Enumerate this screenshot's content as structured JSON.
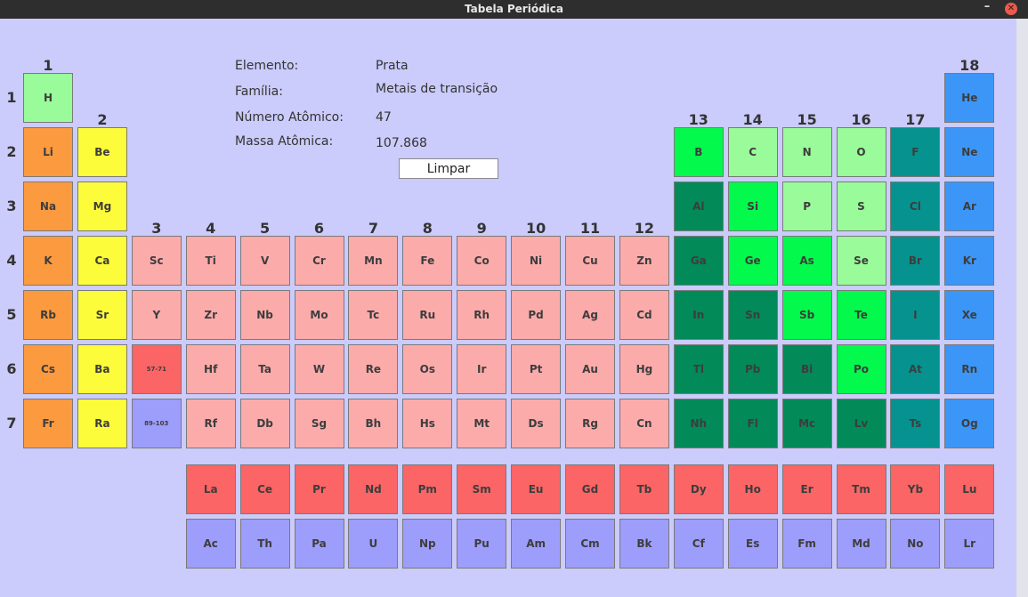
{
  "window": {
    "title": "Tabela Periódica"
  },
  "colors": {
    "hydrogen": "#99fb99",
    "alkali": "#fb9a3f",
    "alkaline_earth": "#fcfc3a",
    "transition": "#fcabab",
    "lanthanide": "#fb6565",
    "actinide": "#9d9dfb",
    "post_transition": "#028a59",
    "metalloid": "#03f94b",
    "nonmetal": "#99fb99",
    "halogen": "#06938f",
    "noble_gas": "#3c96f7"
  },
  "info": {
    "element_label": "Elemento:",
    "element_value": "Prata",
    "family_label": "Família:",
    "family_value": "Metais de transição",
    "atomic_number_label": "Número Atômico:",
    "atomic_number_value": "47",
    "atomic_mass_label": "Massa Atômica:",
    "atomic_mass_value": "107.868",
    "clear_button": "Limpar"
  },
  "group_labels": [
    "1",
    "2",
    "3",
    "4",
    "5",
    "6",
    "7",
    "8",
    "9",
    "10",
    "11",
    "12",
    "13",
    "14",
    "15",
    "16",
    "17",
    "18"
  ],
  "period_labels": [
    "1",
    "2",
    "3",
    "4",
    "5",
    "6",
    "7"
  ],
  "elements": [
    {
      "s": "H",
      "g": 1,
      "p": 1,
      "c": "hydrogen"
    },
    {
      "s": "He",
      "g": 18,
      "p": 1,
      "c": "noble_gas"
    },
    {
      "s": "Li",
      "g": 1,
      "p": 2,
      "c": "alkali"
    },
    {
      "s": "Be",
      "g": 2,
      "p": 2,
      "c": "alkaline_earth"
    },
    {
      "s": "B",
      "g": 13,
      "p": 2,
      "c": "metalloid"
    },
    {
      "s": "C",
      "g": 14,
      "p": 2,
      "c": "nonmetal"
    },
    {
      "s": "N",
      "g": 15,
      "p": 2,
      "c": "nonmetal"
    },
    {
      "s": "O",
      "g": 16,
      "p": 2,
      "c": "nonmetal"
    },
    {
      "s": "F",
      "g": 17,
      "p": 2,
      "c": "halogen"
    },
    {
      "s": "Ne",
      "g": 18,
      "p": 2,
      "c": "noble_gas"
    },
    {
      "s": "Na",
      "g": 1,
      "p": 3,
      "c": "alkali"
    },
    {
      "s": "Mg",
      "g": 2,
      "p": 3,
      "c": "alkaline_earth"
    },
    {
      "s": "Al",
      "g": 13,
      "p": 3,
      "c": "post_transition"
    },
    {
      "s": "Si",
      "g": 14,
      "p": 3,
      "c": "metalloid"
    },
    {
      "s": "P",
      "g": 15,
      "p": 3,
      "c": "nonmetal"
    },
    {
      "s": "S",
      "g": 16,
      "p": 3,
      "c": "nonmetal"
    },
    {
      "s": "Cl",
      "g": 17,
      "p": 3,
      "c": "halogen"
    },
    {
      "s": "Ar",
      "g": 18,
      "p": 3,
      "c": "noble_gas"
    },
    {
      "s": "K",
      "g": 1,
      "p": 4,
      "c": "alkali"
    },
    {
      "s": "Ca",
      "g": 2,
      "p": 4,
      "c": "alkaline_earth"
    },
    {
      "s": "Sc",
      "g": 3,
      "p": 4,
      "c": "transition"
    },
    {
      "s": "Ti",
      "g": 4,
      "p": 4,
      "c": "transition"
    },
    {
      "s": "V",
      "g": 5,
      "p": 4,
      "c": "transition"
    },
    {
      "s": "Cr",
      "g": 6,
      "p": 4,
      "c": "transition"
    },
    {
      "s": "Mn",
      "g": 7,
      "p": 4,
      "c": "transition"
    },
    {
      "s": "Fe",
      "g": 8,
      "p": 4,
      "c": "transition"
    },
    {
      "s": "Co",
      "g": 9,
      "p": 4,
      "c": "transition"
    },
    {
      "s": "Ni",
      "g": 10,
      "p": 4,
      "c": "transition"
    },
    {
      "s": "Cu",
      "g": 11,
      "p": 4,
      "c": "transition"
    },
    {
      "s": "Zn",
      "g": 12,
      "p": 4,
      "c": "transition"
    },
    {
      "s": "Ga",
      "g": 13,
      "p": 4,
      "c": "post_transition"
    },
    {
      "s": "Ge",
      "g": 14,
      "p": 4,
      "c": "metalloid"
    },
    {
      "s": "As",
      "g": 15,
      "p": 4,
      "c": "metalloid"
    },
    {
      "s": "Se",
      "g": 16,
      "p": 4,
      "c": "nonmetal"
    },
    {
      "s": "Br",
      "g": 17,
      "p": 4,
      "c": "halogen"
    },
    {
      "s": "Kr",
      "g": 18,
      "p": 4,
      "c": "noble_gas"
    },
    {
      "s": "Rb",
      "g": 1,
      "p": 5,
      "c": "alkali"
    },
    {
      "s": "Sr",
      "g": 2,
      "p": 5,
      "c": "alkaline_earth"
    },
    {
      "s": "Y",
      "g": 3,
      "p": 5,
      "c": "transition"
    },
    {
      "s": "Zr",
      "g": 4,
      "p": 5,
      "c": "transition"
    },
    {
      "s": "Nb",
      "g": 5,
      "p": 5,
      "c": "transition"
    },
    {
      "s": "Mo",
      "g": 6,
      "p": 5,
      "c": "transition"
    },
    {
      "s": "Tc",
      "g": 7,
      "p": 5,
      "c": "transition"
    },
    {
      "s": "Ru",
      "g": 8,
      "p": 5,
      "c": "transition"
    },
    {
      "s": "Rh",
      "g": 9,
      "p": 5,
      "c": "transition"
    },
    {
      "s": "Pd",
      "g": 10,
      "p": 5,
      "c": "transition"
    },
    {
      "s": "Ag",
      "g": 11,
      "p": 5,
      "c": "transition"
    },
    {
      "s": "Cd",
      "g": 12,
      "p": 5,
      "c": "transition"
    },
    {
      "s": "In",
      "g": 13,
      "p": 5,
      "c": "post_transition"
    },
    {
      "s": "Sn",
      "g": 14,
      "p": 5,
      "c": "post_transition"
    },
    {
      "s": "Sb",
      "g": 15,
      "p": 5,
      "c": "metalloid"
    },
    {
      "s": "Te",
      "g": 16,
      "p": 5,
      "c": "metalloid"
    },
    {
      "s": "I",
      "g": 17,
      "p": 5,
      "c": "halogen"
    },
    {
      "s": "Xe",
      "g": 18,
      "p": 5,
      "c": "noble_gas"
    },
    {
      "s": "Cs",
      "g": 1,
      "p": 6,
      "c": "alkali"
    },
    {
      "s": "Ba",
      "g": 2,
      "p": 6,
      "c": "alkaline_earth"
    },
    {
      "s": "57-71",
      "g": 3,
      "p": 6,
      "c": "lanthanide",
      "small": true
    },
    {
      "s": "Hf",
      "g": 4,
      "p": 6,
      "c": "transition"
    },
    {
      "s": "Ta",
      "g": 5,
      "p": 6,
      "c": "transition"
    },
    {
      "s": "W",
      "g": 6,
      "p": 6,
      "c": "transition"
    },
    {
      "s": "Re",
      "g": 7,
      "p": 6,
      "c": "transition"
    },
    {
      "s": "Os",
      "g": 8,
      "p": 6,
      "c": "transition"
    },
    {
      "s": "Ir",
      "g": 9,
      "p": 6,
      "c": "transition"
    },
    {
      "s": "Pt",
      "g": 10,
      "p": 6,
      "c": "transition"
    },
    {
      "s": "Au",
      "g": 11,
      "p": 6,
      "c": "transition"
    },
    {
      "s": "Hg",
      "g": 12,
      "p": 6,
      "c": "transition"
    },
    {
      "s": "Tl",
      "g": 13,
      "p": 6,
      "c": "post_transition"
    },
    {
      "s": "Pb",
      "g": 14,
      "p": 6,
      "c": "post_transition"
    },
    {
      "s": "Bi",
      "g": 15,
      "p": 6,
      "c": "post_transition"
    },
    {
      "s": "Po",
      "g": 16,
      "p": 6,
      "c": "metalloid"
    },
    {
      "s": "At",
      "g": 17,
      "p": 6,
      "c": "halogen"
    },
    {
      "s": "Rn",
      "g": 18,
      "p": 6,
      "c": "noble_gas"
    },
    {
      "s": "Fr",
      "g": 1,
      "p": 7,
      "c": "alkali"
    },
    {
      "s": "Ra",
      "g": 2,
      "p": 7,
      "c": "alkaline_earth"
    },
    {
      "s": "89-103",
      "g": 3,
      "p": 7,
      "c": "actinide",
      "small": true
    },
    {
      "s": "Rf",
      "g": 4,
      "p": 7,
      "c": "transition"
    },
    {
      "s": "Db",
      "g": 5,
      "p": 7,
      "c": "transition"
    },
    {
      "s": "Sg",
      "g": 6,
      "p": 7,
      "c": "transition"
    },
    {
      "s": "Bh",
      "g": 7,
      "p": 7,
      "c": "transition"
    },
    {
      "s": "Hs",
      "g": 8,
      "p": 7,
      "c": "transition"
    },
    {
      "s": "Mt",
      "g": 9,
      "p": 7,
      "c": "transition"
    },
    {
      "s": "Ds",
      "g": 10,
      "p": 7,
      "c": "transition"
    },
    {
      "s": "Rg",
      "g": 11,
      "p": 7,
      "c": "transition"
    },
    {
      "s": "Cn",
      "g": 12,
      "p": 7,
      "c": "transition"
    },
    {
      "s": "Nh",
      "g": 13,
      "p": 7,
      "c": "post_transition"
    },
    {
      "s": "Fl",
      "g": 14,
      "p": 7,
      "c": "post_transition"
    },
    {
      "s": "Mc",
      "g": 15,
      "p": 7,
      "c": "post_transition"
    },
    {
      "s": "Lv",
      "g": 16,
      "p": 7,
      "c": "post_transition"
    },
    {
      "s": "Ts",
      "g": 17,
      "p": 7,
      "c": "halogen"
    },
    {
      "s": "Og",
      "g": 18,
      "p": 7,
      "c": "noble_gas"
    }
  ],
  "lanthanides": [
    "La",
    "Ce",
    "Pr",
    "Nd",
    "Pm",
    "Sm",
    "Eu",
    "Gd",
    "Tb",
    "Dy",
    "Ho",
    "Er",
    "Tm",
    "Yb",
    "Lu"
  ],
  "actinides": [
    "Ac",
    "Th",
    "Pa",
    "U",
    "Np",
    "Pu",
    "Am",
    "Cm",
    "Bk",
    "Cf",
    "Es",
    "Fm",
    "Md",
    "No",
    "Lr"
  ]
}
